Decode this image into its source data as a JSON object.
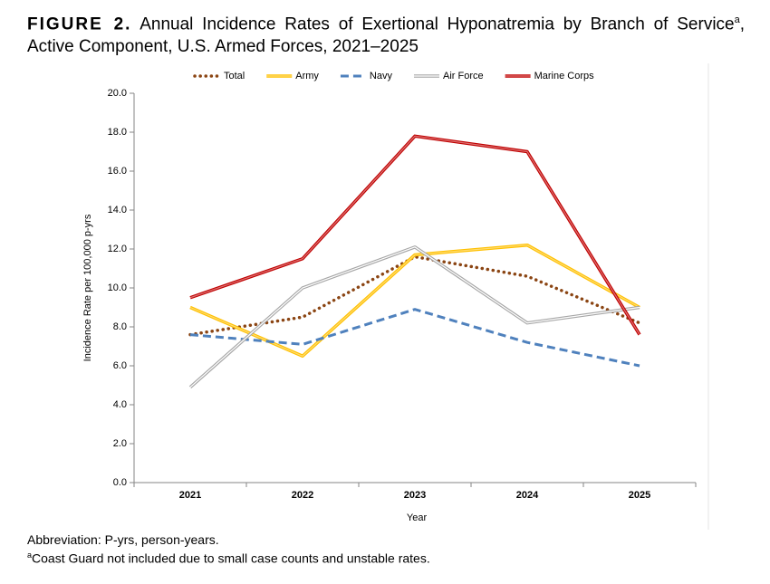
{
  "chart_data": {
    "type": "line",
    "figure_label": "FIGURE 2.",
    "title": "Annual Incidence Rates of Exertional Hyponatremia by Branch of Service",
    "title_marker": "a",
    "title_rest": ", Active Component, U.S. Armed Forces, 2021–2025",
    "x_label": "Year",
    "y_label": "Incidence Rate per 100,000 p-yrs",
    "categories": [
      "2021",
      "2022",
      "2023",
      "2024",
      "2025"
    ],
    "series": [
      {
        "name": "Total",
        "color": "#8b4513",
        "style": "dotted",
        "values": [
          7.6,
          8.5,
          11.6,
          10.6,
          8.2
        ]
      },
      {
        "name": "Army",
        "color": "#ffc000",
        "style": "double",
        "values": [
          9.0,
          6.5,
          11.7,
          12.2,
          9.0
        ]
      },
      {
        "name": "Navy",
        "color": "#4f81bd",
        "style": "dashed",
        "values": [
          7.6,
          7.1,
          8.9,
          7.2,
          6.0
        ]
      },
      {
        "name": "Air Force",
        "color": "#a6a6a6",
        "style": "double",
        "values": [
          4.9,
          10.0,
          12.1,
          8.2,
          9.0
        ]
      },
      {
        "name": "Marine Corps",
        "color": "#c00000",
        "style": "double",
        "values": [
          9.5,
          11.5,
          17.8,
          17.0,
          7.6
        ]
      }
    ],
    "ylim": [
      0,
      20
    ],
    "yticks": [
      {
        "value": 0,
        "label": "0.0"
      },
      {
        "value": 2,
        "label": "2.0"
      },
      {
        "value": 4,
        "label": "4.0"
      },
      {
        "value": 6,
        "label": "6.0"
      },
      {
        "value": 8,
        "label": "8.0"
      },
      {
        "value": 10,
        "label": "10.0"
      },
      {
        "value": 12,
        "label": "12.0"
      },
      {
        "value": 14,
        "label": "14.0"
      },
      {
        "value": 16,
        "label": "16.0"
      },
      {
        "value": 18,
        "label": "18.0"
      },
      {
        "value": 20,
        "label": "20.0"
      }
    ],
    "legend": "top",
    "notes": {
      "abbreviation": "Abbreviation: P-yrs, person-years.",
      "marker": "a",
      "footnote": "Coast Guard not included due to small case counts and unstable rates."
    }
  }
}
